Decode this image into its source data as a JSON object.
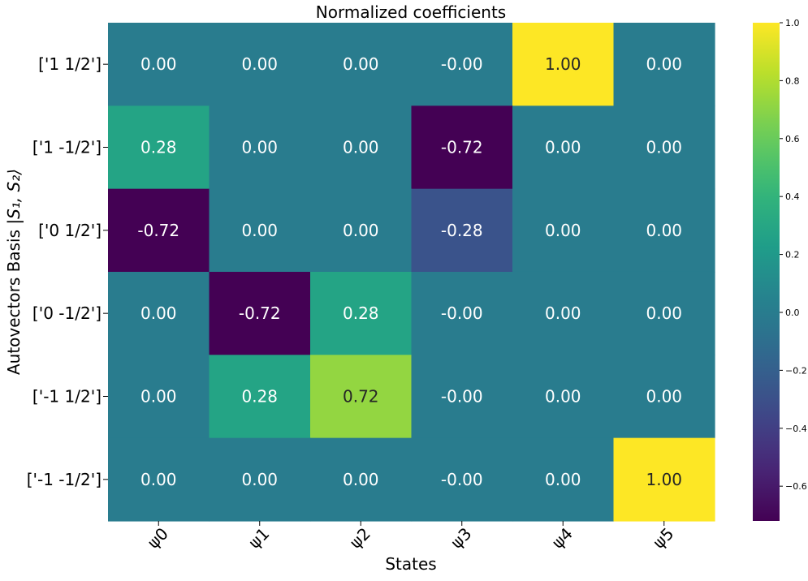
{
  "chart_data": {
    "type": "heatmap",
    "title": "Normalized coefficients",
    "xlabel": "States",
    "ylabel_text": "Autovectors Basis ",
    "ylabel_math": "|S₁, S₂⟩",
    "x_categories": [
      "ψ0",
      "ψ1",
      "ψ2",
      "ψ3",
      "ψ4",
      "ψ5"
    ],
    "y_categories": [
      "['1 1/2']",
      "['1 -1/2']",
      "['0 1/2']",
      "['0 -1/2']",
      "['-1 1/2']",
      "['-1 -1/2']"
    ],
    "values": [
      [
        0.0,
        0.0,
        0.0,
        -0.0,
        1.0,
        0.0
      ],
      [
        0.28,
        0.0,
        0.0,
        -0.72,
        0.0,
        0.0
      ],
      [
        -0.72,
        0.0,
        0.0,
        -0.28,
        0.0,
        0.0
      ],
      [
        0.0,
        -0.72,
        0.28,
        -0.0,
        0.0,
        0.0
      ],
      [
        0.0,
        0.28,
        0.72,
        -0.0,
        0.0,
        0.0
      ],
      [
        0.0,
        0.0,
        0.0,
        -0.0,
        0.0,
        1.0
      ]
    ],
    "annotations": [
      [
        "0.00",
        "0.00",
        "0.00",
        "-0.00",
        "1.00",
        "0.00"
      ],
      [
        "0.28",
        "0.00",
        "0.00",
        "-0.72",
        "0.00",
        "0.00"
      ],
      [
        "-0.72",
        "0.00",
        "0.00",
        "-0.28",
        "0.00",
        "0.00"
      ],
      [
        "0.00",
        "-0.72",
        "0.28",
        "-0.00",
        "0.00",
        "0.00"
      ],
      [
        "0.00",
        "0.28",
        "0.72",
        "-0.00",
        "0.00",
        "0.00"
      ],
      [
        "0.00",
        "0.00",
        "0.00",
        "-0.00",
        "0.00",
        "1.00"
      ]
    ],
    "colormap": "viridis",
    "vmin": -0.72,
    "vmax": 1.0,
    "colorbar_ticks": [
      1.0,
      0.8,
      0.6,
      0.4,
      0.2,
      0.0,
      -0.2,
      -0.4,
      -0.6
    ],
    "colorbar_tick_labels": [
      "1.0",
      "0.8",
      "0.6",
      "0.4",
      "0.2",
      "0.0",
      "−0.2",
      "−0.4",
      "−0.6"
    ],
    "grid": false
  }
}
